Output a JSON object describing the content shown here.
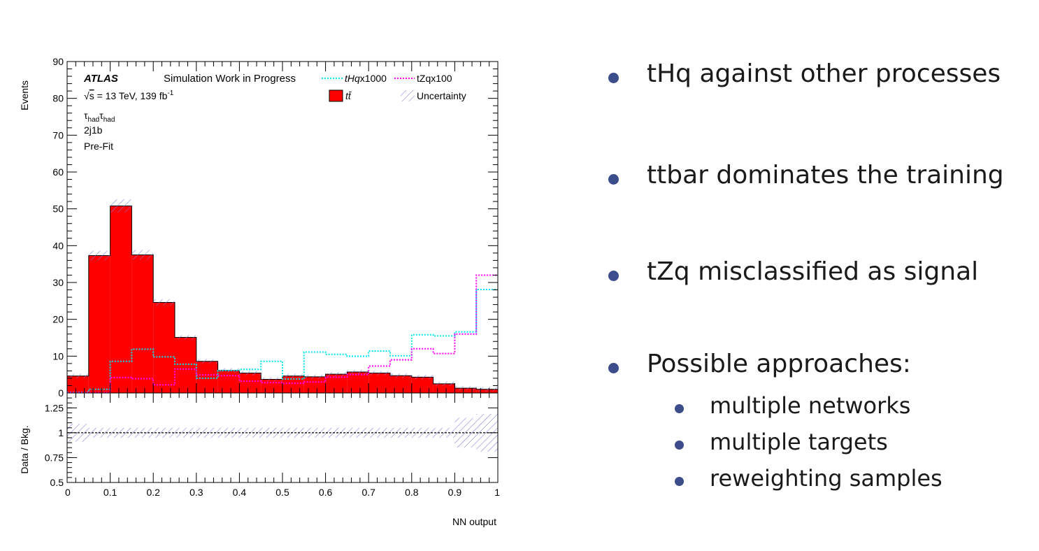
{
  "chart_data": {
    "type": "histogram",
    "x_edges": [
      0,
      0.05,
      0.1,
      0.15,
      0.2,
      0.25,
      0.3,
      0.35,
      0.4,
      0.45,
      0.5,
      0.55,
      0.6,
      0.65,
      0.7,
      0.75,
      0.8,
      0.85,
      0.9,
      0.95,
      1.0
    ],
    "xlabel": "NN output",
    "ylabel": "Events",
    "ylim": [
      0,
      90
    ],
    "xlim": [
      0,
      1
    ],
    "x_ticks": [
      "0",
      "0.1",
      "0.2",
      "0.3",
      "0.4",
      "0.5",
      "0.6",
      "0.7",
      "0.8",
      "0.9",
      "1"
    ],
    "y_ticks": [
      "0",
      "10",
      "20",
      "30",
      "40",
      "50",
      "60",
      "70",
      "80",
      "90"
    ],
    "series": [
      {
        "name": "t t̄",
        "style": "filled",
        "color": "#ff0000",
        "values": [
          4.6,
          37.3,
          50.8,
          37.5,
          24.6,
          15.1,
          8.6,
          6.1,
          5.4,
          3.7,
          4.6,
          4.4,
          5.1,
          5.7,
          5.4,
          4.7,
          4.3,
          2.5,
          1.3,
          1.0
        ]
      },
      {
        "name": "tHq x1000",
        "style": "dotted",
        "color": "#00e5ee",
        "values": [
          0.2,
          1.0,
          8.6,
          11.9,
          9.8,
          7.8,
          4.0,
          6.1,
          6.4,
          8.6,
          3.8,
          11.1,
          10.5,
          10.0,
          11.4,
          10.1,
          15.8,
          15.5,
          16.6,
          28.1
        ]
      },
      {
        "name": "tZqx100",
        "style": "dotted",
        "color": "#ff00ff",
        "values": [
          0.1,
          0.1,
          4.2,
          3.9,
          2.2,
          6.5,
          4.9,
          4.7,
          3.2,
          2.8,
          2.6,
          3.0,
          4.3,
          5.0,
          7.3,
          9.0,
          12.0,
          10.7,
          16.0,
          32.0
        ]
      }
    ],
    "uncertainty_label": "Uncertainty",
    "ratio": {
      "ylabel": "Data / Bkg.",
      "ylim": [
        0.5,
        1.4
      ],
      "y_ticks": [
        "0.5",
        "0.75",
        "1",
        "1.25"
      ],
      "reference": 1,
      "band_halfwidth": [
        0.09,
        0.05,
        0.05,
        0.05,
        0.05,
        0.05,
        0.05,
        0.05,
        0.05,
        0.05,
        0.05,
        0.05,
        0.05,
        0.05,
        0.05,
        0.05,
        0.05,
        0.05,
        0.15,
        0.19
      ]
    },
    "annotations": {
      "experiment": "ATLAS",
      "status": "Simulation Work in Progress",
      "energy_sqrt": "s",
      "energy": " = 13 TeV, 139 fb",
      "lumi_exp": "-1",
      "channel_base": "τ",
      "channel_sub": "had",
      "region": "2j1b",
      "fit": "Pre-Fit"
    },
    "legend": {
      "placement": "top-right",
      "thq_italic": "tHq",
      "thq_rest": "x1000",
      "tzq": "tZqx100",
      "ttbar": "tt̄",
      "uncertainty": "Uncertainty"
    }
  },
  "bullets": [
    {
      "text": "tHq against other processes"
    },
    {
      "text": "ttbar dominates the training"
    },
    {
      "text": "tZq misclassified as signal"
    },
    {
      "text": "Possible approaches:"
    }
  ],
  "sub_bullets": [
    {
      "text": "multiple networks"
    },
    {
      "text": "multiple targets"
    },
    {
      "text": "reweighting samples"
    }
  ],
  "colors": {
    "bullet_dot": "#3b4d8a",
    "band": "#7b7bdb"
  }
}
